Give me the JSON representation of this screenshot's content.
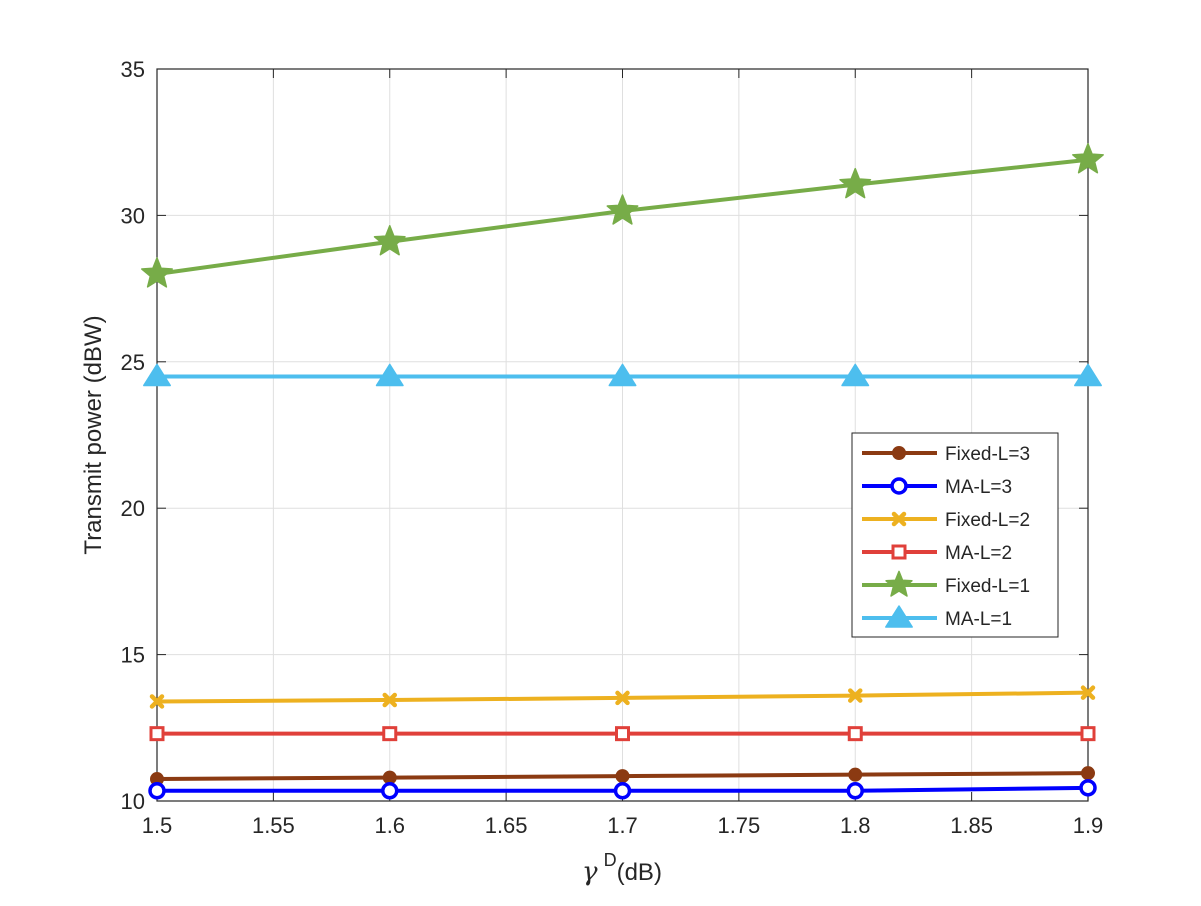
{
  "chart_data": {
    "type": "line",
    "title": "",
    "xlabel_symbol": "γ",
    "xlabel_superscript": "D",
    "xlabel_unit": "(dB)",
    "ylabel": "Transmit power (dBW)",
    "xlim": [
      1.5,
      1.9
    ],
    "ylim": [
      10,
      35
    ],
    "xticks": [
      "1.5",
      "1.55",
      "1.6",
      "1.65",
      "1.7",
      "1.75",
      "1.8",
      "1.85",
      "1.9"
    ],
    "yticks": [
      "10",
      "15",
      "20",
      "25",
      "30",
      "35"
    ],
    "grid": true,
    "legend_position": "right",
    "x": [
      1.5,
      1.6,
      1.7,
      1.8,
      1.9
    ],
    "series": [
      {
        "name": "Fixed-L=3",
        "color": "#8B3A12",
        "marker": "filled-circle",
        "values": [
          10.75,
          10.8,
          10.85,
          10.9,
          10.95
        ]
      },
      {
        "name": "MA-L=3",
        "color": "#0000FF",
        "marker": "open-circle",
        "values": [
          10.35,
          10.35,
          10.35,
          10.35,
          10.45
        ]
      },
      {
        "name": "Fixed-L=2",
        "color": "#EDB120",
        "marker": "x",
        "values": [
          13.4,
          13.45,
          13.52,
          13.6,
          13.7
        ]
      },
      {
        "name": "MA-L=2",
        "color": "#E0403A",
        "marker": "open-square",
        "values": [
          12.3,
          12.3,
          12.3,
          12.3,
          12.3
        ]
      },
      {
        "name": "Fixed-L=1",
        "color": "#77AC48",
        "marker": "filled-star",
        "values": [
          28.0,
          29.1,
          30.15,
          31.05,
          31.9
        ]
      },
      {
        "name": "MA-L=1",
        "color": "#4DBEEE",
        "marker": "filled-triangle",
        "values": [
          24.5,
          24.5,
          24.5,
          24.5,
          24.5
        ]
      }
    ]
  }
}
